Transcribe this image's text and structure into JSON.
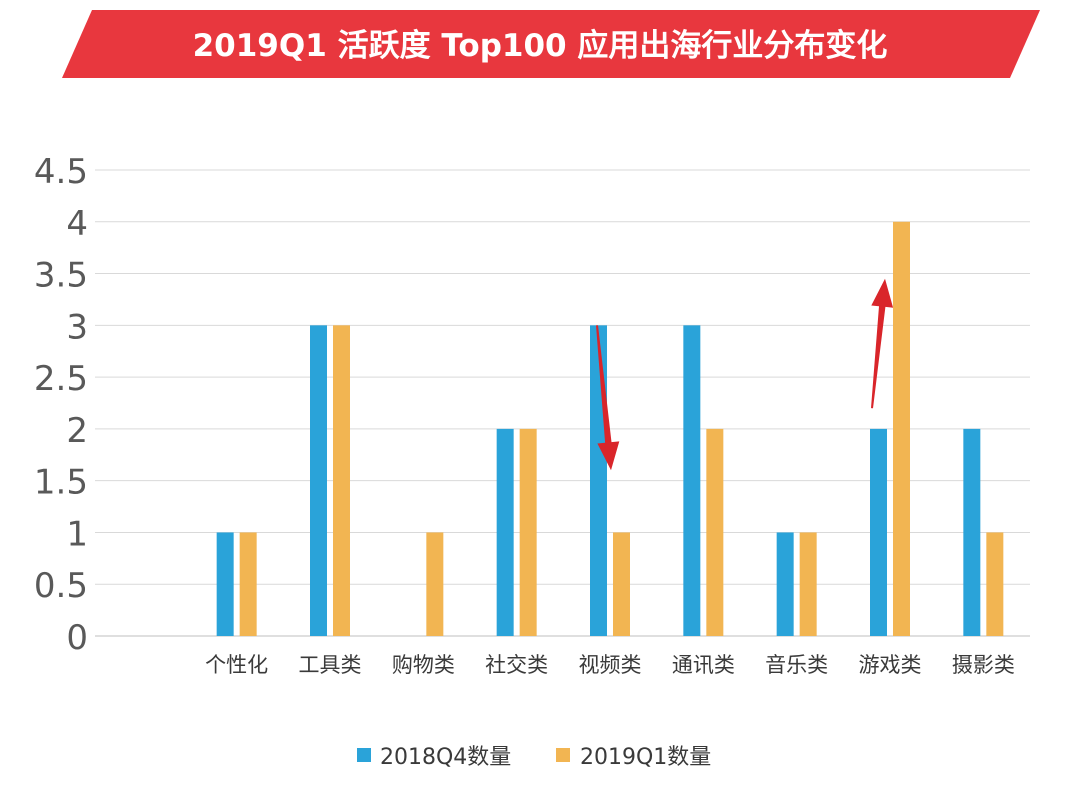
{
  "header": {
    "title": "2019Q1 活跃度 Top100 应用出海行业分布变化"
  },
  "colors": {
    "banner_red": "#e8373e",
    "series_2018Q4": "#2aa3d9",
    "series_2019Q1": "#f2b552",
    "arrow_red": "#d9252a",
    "grid": "#d9d9d9",
    "axis": "#bfbfbf"
  },
  "chart_data": {
    "type": "bar",
    "title": "2019Q1 活跃度 Top100 应用出海行业分布变化",
    "xlabel": "",
    "ylabel": "",
    "ylim": [
      0,
      4.5
    ],
    "yticks": [
      "0",
      "0.5",
      "1",
      "1.5",
      "2",
      "2.5",
      "3",
      "3.5",
      "4",
      "4.5"
    ],
    "grid": true,
    "legend_position": "bottom",
    "categories": [
      "个性化",
      "工具类",
      "购物类",
      "社交类",
      "视频类",
      "通讯类",
      "音乐类",
      "游戏类",
      "摄影类"
    ],
    "series": [
      {
        "name": "2018Q4数量",
        "color": "#2aa3d9",
        "values": [
          1,
          3,
          0,
          2,
          3,
          3,
          1,
          2,
          2
        ]
      },
      {
        "name": "2019Q1数量",
        "color": "#f2b552",
        "values": [
          1,
          3,
          1,
          2,
          1,
          2,
          1,
          4,
          1
        ]
      }
    ],
    "annotations": [
      {
        "type": "arrow",
        "direction": "down",
        "category": "视频类",
        "from_value": 3,
        "to_value": 1.6
      },
      {
        "type": "arrow",
        "direction": "up",
        "category": "游戏类",
        "from_value": 2.2,
        "to_value": 3.45
      }
    ]
  }
}
